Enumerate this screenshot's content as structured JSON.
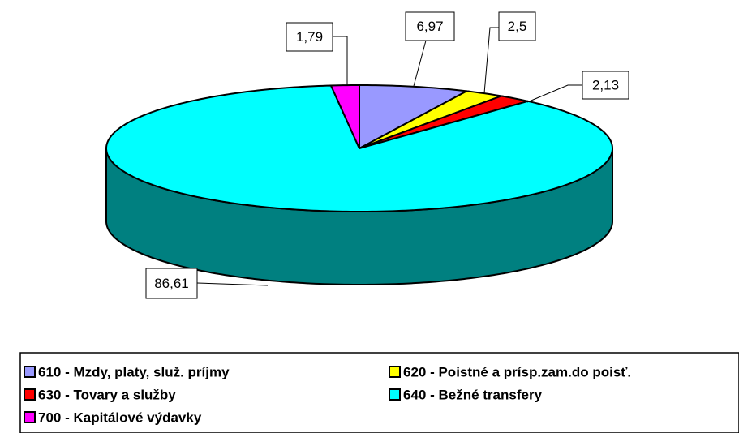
{
  "chart_data": {
    "type": "pie3d",
    "categories": [
      "610 - Mzdy, platy, služ. príjmy",
      "620 - Poistné a prísp.zam.do poisť.",
      "630 - Tovary a služby",
      "640 - Bežné transfery",
      "700 - Kapitálové výdavky"
    ],
    "values": [
      6.97,
      2.5,
      2.13,
      86.61,
      1.79
    ],
    "value_labels": [
      "6,97",
      "2,5",
      "2,13",
      "86,61",
      "1,79"
    ],
    "colors": [
      "#9999ff",
      "#ffff00",
      "#ff0000",
      "#00ffff",
      "#ff00ff"
    ]
  }
}
